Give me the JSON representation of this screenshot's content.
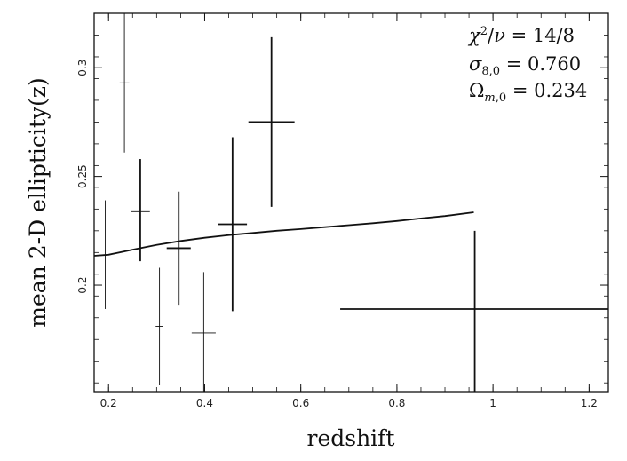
{
  "chart_data": {
    "type": "scatter",
    "xlabel": "redshift",
    "ylabel": "mean 2-D ellipticity(z)",
    "xlim": [
      0.17,
      1.24
    ],
    "ylim": [
      0.151,
      0.325
    ],
    "x_ticks": [
      0.2,
      0.4,
      0.6,
      0.8,
      1.0,
      1.2
    ],
    "x_tick_labels": [
      "0.2",
      "0.4",
      "0.6",
      "0.8",
      "1",
      "1.2"
    ],
    "y_ticks": [
      0.2,
      0.25,
      0.3
    ],
    "y_tick_labels": [
      "0.2",
      "0.25",
      "0.3"
    ],
    "grid": false,
    "annotations": {
      "chi2_value": "= 14/8",
      "sigma_value": "= 0.760",
      "omega_value": "= 0.234"
    },
    "points": [
      {
        "x": 0.193,
        "y": 0.214,
        "x_err": 0.0,
        "y_lo": 0.189,
        "y_hi": 0.239,
        "weight": "thin"
      },
      {
        "x": 0.233,
        "y": 0.293,
        "x_err": 0.01,
        "y_lo": 0.261,
        "y_hi": 0.325,
        "weight": "thin"
      },
      {
        "x": 0.266,
        "y": 0.234,
        "x_err": 0.02,
        "y_lo": 0.211,
        "y_hi": 0.258,
        "weight": "bold"
      },
      {
        "x": 0.306,
        "y": 0.181,
        "x_err": 0.008,
        "y_lo": 0.154,
        "y_hi": 0.208,
        "weight": "thin"
      },
      {
        "x": 0.346,
        "y": 0.217,
        "x_err": 0.025,
        "y_lo": 0.191,
        "y_hi": 0.243,
        "weight": "bold"
      },
      {
        "x": 0.398,
        "y": 0.178,
        "x_err": 0.025,
        "y_lo": 0.151,
        "y_hi": 0.206,
        "weight": "thin"
      },
      {
        "x": 0.458,
        "y": 0.228,
        "x_err": 0.03,
        "y_lo": 0.188,
        "y_hi": 0.268,
        "weight": "bold"
      },
      {
        "x": 0.539,
        "y": 0.275,
        "x_err": 0.048,
        "y_lo": 0.236,
        "y_hi": 0.314,
        "weight": "bold"
      },
      {
        "x": 0.962,
        "y": 0.189,
        "x_err": 0.28,
        "y_lo": 0.151,
        "y_hi": 0.225,
        "weight": "bold"
      }
    ],
    "model_curve": {
      "x": [
        0.17,
        0.2,
        0.25,
        0.3,
        0.35,
        0.4,
        0.45,
        0.5,
        0.55,
        0.6,
        0.65,
        0.7,
        0.75,
        0.8,
        0.85,
        0.9,
        0.96
      ],
      "y": [
        0.2135,
        0.214,
        0.2163,
        0.2185,
        0.2203,
        0.2218,
        0.223,
        0.224,
        0.225,
        0.2258,
        0.2267,
        0.2276,
        0.2285,
        0.2295,
        0.2307,
        0.2318,
        0.2335
      ]
    }
  }
}
